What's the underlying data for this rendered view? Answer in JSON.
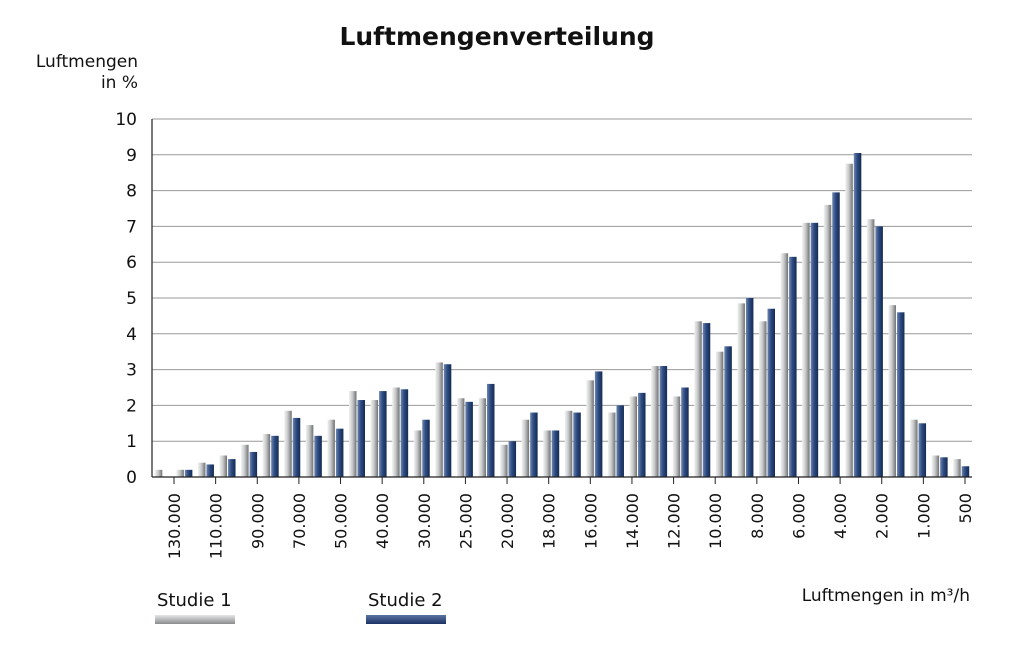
{
  "chart_data": {
    "type": "bar",
    "title": "Luftmengenverteilung",
    "ylabel_line1": "Luftmengen",
    "ylabel_line2": "in %",
    "xlabel": "Luftmengen in m³/h",
    "ylim": [
      0,
      10
    ],
    "yticks": [
      0,
      1,
      2,
      3,
      4,
      5,
      6,
      7,
      8,
      9,
      10
    ],
    "grid": true,
    "xtick_labels": [
      "130.000",
      "110.000",
      "90.000",
      "70.000",
      "50.000",
      "40.000",
      "30.000",
      "25.000",
      "20.000",
      "18.000",
      "16.000",
      "14.000",
      "12.000",
      "10.000",
      "8.000",
      "6.000",
      "4.000",
      "2.000",
      "1.000",
      "500"
    ],
    "series": [
      {
        "name": "Studie 1",
        "color": "#a8aaac",
        "values": [
          0.2,
          0.2,
          0.4,
          0.6,
          0.9,
          1.2,
          1.85,
          1.45,
          1.6,
          2.4,
          2.15,
          2.5,
          1.3,
          3.2,
          2.2,
          2.2,
          0.9,
          1.6,
          1.3,
          1.85,
          2.7,
          1.8,
          2.25,
          3.1,
          2.25,
          4.35,
          3.5,
          4.85,
          4.35,
          6.25,
          7.1,
          7.6,
          8.75,
          7.2,
          4.8,
          1.6,
          0.6,
          0.5
        ]
      },
      {
        "name": "Studie 2",
        "color": "#2b4a7f",
        "values": [
          0.0,
          0.2,
          0.35,
          0.5,
          0.7,
          1.15,
          1.65,
          1.15,
          1.35,
          2.15,
          2.4,
          2.45,
          1.6,
          3.15,
          2.1,
          2.6,
          1.0,
          1.8,
          1.3,
          1.8,
          2.95,
          2.0,
          2.35,
          3.1,
          2.5,
          4.3,
          3.65,
          5.0,
          4.7,
          6.15,
          7.1,
          7.95,
          9.05,
          7.0,
          4.6,
          1.5,
          0.55,
          0.3
        ]
      }
    ]
  }
}
